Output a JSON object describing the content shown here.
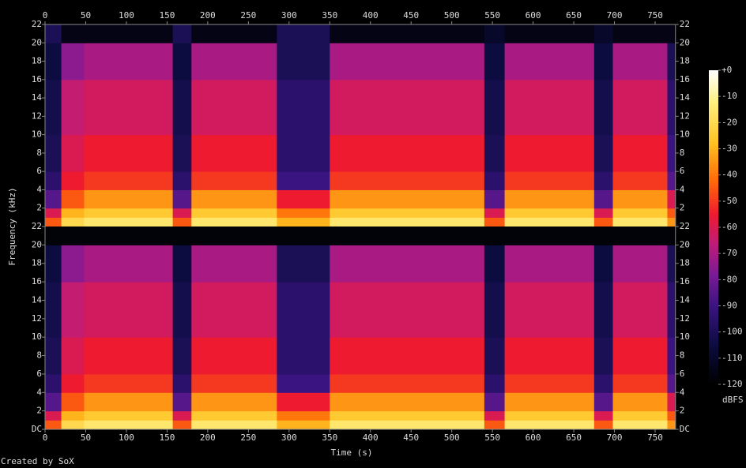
{
  "chart_data": {
    "type": "spectrogram",
    "x_label": "Time (s)",
    "y_label": "Frequency (kHz)",
    "colorbar_label": "dBFS",
    "credit": "Created by SoX",
    "xlim": [
      0,
      775
    ],
    "xticks": [
      0,
      50,
      100,
      150,
      200,
      250,
      300,
      350,
      400,
      450,
      500,
      550,
      600,
      650,
      700,
      750
    ],
    "ylim": [
      0,
      22
    ],
    "clim": [
      -120,
      0
    ],
    "cticks": [
      {
        "value": 0,
        "label": "+0"
      },
      -10,
      -20,
      -30,
      -40,
      -50,
      -60,
      -70,
      -80,
      -90,
      -100,
      -110,
      -120
    ],
    "colormap": [
      {
        "value": -120,
        "color": "#000000"
      },
      {
        "value": -105,
        "color": "#0c0c40"
      },
      {
        "value": -90,
        "color": "#3a1480"
      },
      {
        "value": -78,
        "color": "#7a1a96"
      },
      {
        "value": -66,
        "color": "#c01c78"
      },
      {
        "value": -55,
        "color": "#ee1a30"
      },
      {
        "value": -42,
        "color": "#ff6a08"
      },
      {
        "value": -28,
        "color": "#ffc020"
      },
      {
        "value": -12,
        "color": "#fff080"
      },
      {
        "value": 0,
        "color": "#ffffff"
      }
    ],
    "time_edges": [
      0,
      20,
      48,
      157,
      180,
      285,
      350,
      540,
      565,
      675,
      698,
      765,
      775
    ],
    "freq_edges": [
      0,
      1,
      2,
      4,
      6,
      10,
      16,
      20,
      22
    ],
    "channels": [
      {
        "yticks": [
          2,
          4,
          6,
          8,
          10,
          12,
          14,
          16,
          18,
          20,
          22
        ],
        "z": [
          [
            -45,
            -20,
            -15,
            -45,
            -15,
            -30,
            -15,
            -45,
            -15,
            -45,
            -15,
            -35
          ],
          [
            -60,
            -30,
            -25,
            -60,
            -25,
            -40,
            -25,
            -60,
            -25,
            -60,
            -25,
            -45
          ],
          [
            -85,
            -45,
            -35,
            -85,
            -35,
            -55,
            -35,
            -85,
            -35,
            -85,
            -35,
            -60
          ],
          [
            -95,
            -55,
            -50,
            -95,
            -50,
            -90,
            -50,
            -95,
            -50,
            -95,
            -50,
            -85
          ],
          [
            -100,
            -60,
            -55,
            -100,
            -55,
            -95,
            -55,
            -100,
            -55,
            -100,
            -55,
            -90
          ],
          [
            -102,
            -65,
            -62,
            -102,
            -62,
            -95,
            -62,
            -102,
            -62,
            -102,
            -62,
            -95
          ],
          [
            -105,
            -75,
            -70,
            -105,
            -70,
            -100,
            -70,
            -105,
            -70,
            -105,
            -70,
            -100
          ],
          [
            -100,
            -115,
            -115,
            -100,
            -115,
            -100,
            -115,
            -110,
            -115,
            -110,
            -115,
            -115
          ]
        ]
      },
      {
        "yticks": [
          {
            "value": 0,
            "label": "DC"
          },
          2,
          4,
          6,
          8,
          10,
          12,
          14,
          16,
          18,
          20,
          22
        ],
        "z": [
          [
            -45,
            -20,
            -15,
            -45,
            -15,
            -30,
            -15,
            -45,
            -15,
            -45,
            -15,
            -35
          ],
          [
            -60,
            -30,
            -25,
            -60,
            -25,
            -40,
            -25,
            -60,
            -25,
            -60,
            -25,
            -45
          ],
          [
            -85,
            -45,
            -35,
            -85,
            -35,
            -55,
            -35,
            -85,
            -35,
            -85,
            -35,
            -60
          ],
          [
            -95,
            -55,
            -50,
            -95,
            -50,
            -90,
            -50,
            -95,
            -50,
            -95,
            -50,
            -85
          ],
          [
            -100,
            -60,
            -55,
            -100,
            -55,
            -95,
            -55,
            -100,
            -55,
            -100,
            -55,
            -90
          ],
          [
            -102,
            -65,
            -62,
            -102,
            -62,
            -95,
            -62,
            -102,
            -62,
            -102,
            -62,
            -95
          ],
          [
            -105,
            -75,
            -70,
            -105,
            -70,
            -100,
            -70,
            -105,
            -70,
            -105,
            -70,
            -100
          ],
          [
            -118,
            -118,
            -118,
            -118,
            -118,
            -118,
            -118,
            -118,
            -118,
            -118,
            -118,
            -118
          ]
        ]
      }
    ]
  }
}
